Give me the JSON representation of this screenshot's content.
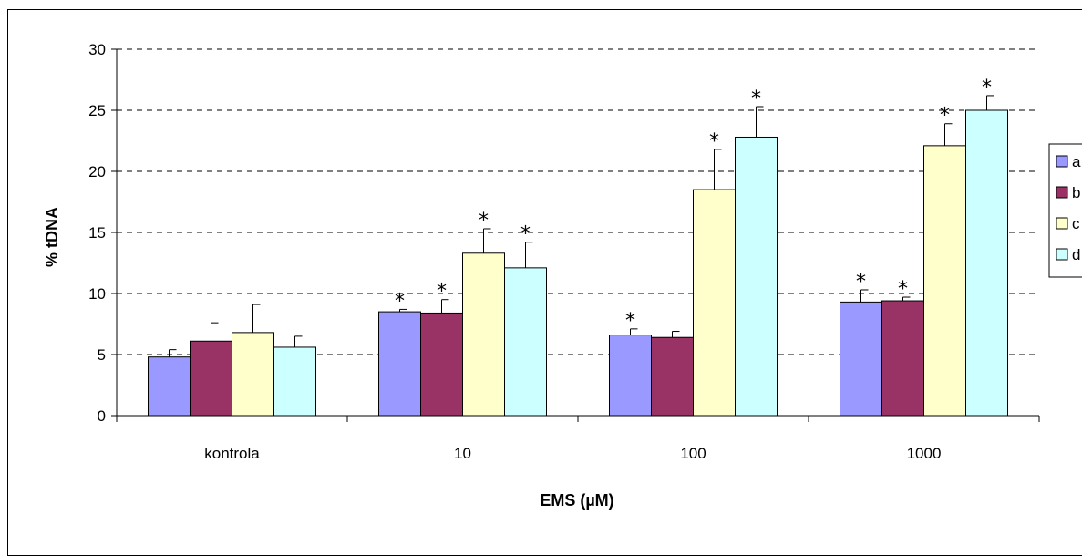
{
  "chart_data": {
    "type": "bar",
    "xlabel": "EMS (µM)",
    "ylabel": "% tDNA",
    "ylim": [
      0,
      30
    ],
    "yticks": [
      0,
      5,
      10,
      15,
      20,
      25,
      30
    ],
    "grid": "horizontal-dashed",
    "legend_position": "right",
    "categories": [
      "kontrola",
      "10",
      "100",
      "1000"
    ],
    "significance_marker": "*",
    "series": [
      {
        "name": "a",
        "color": "#9999ff",
        "values": [
          4.8,
          8.5,
          6.6,
          9.3
        ],
        "errors": [
          0.6,
          0.2,
          0.5,
          1.0
        ],
        "significant": [
          false,
          true,
          true,
          true
        ]
      },
      {
        "name": "b",
        "color": "#993366",
        "values": [
          6.1,
          8.4,
          6.4,
          9.4
        ],
        "errors": [
          1.5,
          1.1,
          0.5,
          0.3
        ],
        "significant": [
          false,
          true,
          false,
          true
        ]
      },
      {
        "name": "c",
        "color": "#ffffcc",
        "values": [
          6.8,
          13.3,
          18.5,
          22.1
        ],
        "errors": [
          2.3,
          2.0,
          3.3,
          1.8
        ],
        "significant": [
          false,
          true,
          true,
          true
        ]
      },
      {
        "name": "d",
        "color": "#ccffff",
        "values": [
          5.6,
          12.1,
          22.8,
          25.0
        ],
        "errors": [
          0.9,
          2.1,
          2.5,
          1.2
        ],
        "significant": [
          false,
          true,
          true,
          true
        ]
      }
    ]
  }
}
